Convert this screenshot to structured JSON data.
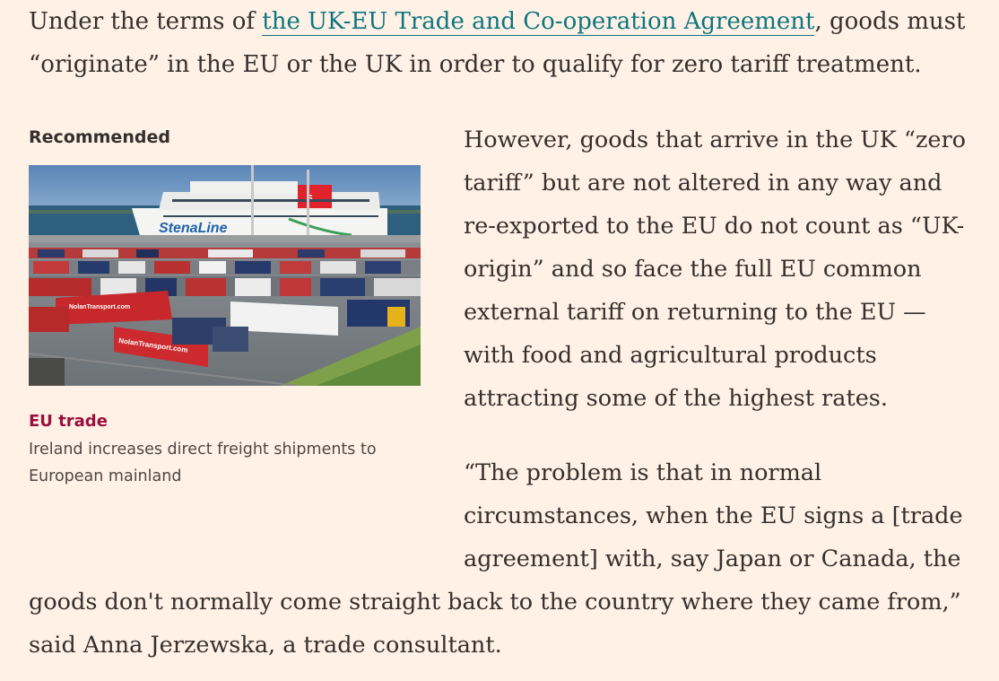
{
  "article": {
    "intro_before_link": "Under the terms of ",
    "intro_link": "the UK-EU Trade and Co-operation Agreement",
    "intro_after_link": ", goods must “originate” in the EU or the UK in order to qualify for zero tariff treatment.",
    "para2": "However, goods that arrive in the UK “zero tariff” but are not altered in any way and re-exported to the EU do not count as “UK-origin” and so face the full EU common external tariff on returning to the EU — with food and agricultural products attracting some of the highest rates.",
    "para3_wrapped": "“The problem is that in normal circumstances, when the EU signs a [trade agreement] with, say Japan or Canada, the",
    "para3_full": "goods don't normally come straight back to the country where they came from,” said Anna Jerzewska, a trade consultant."
  },
  "recommended": {
    "label": "Recommended",
    "image_ship_name": "StenaLine",
    "image_truck_text_1": "NolanTransport.com",
    "image_truck_text_2": "NolanTransport.com",
    "tag": "EU trade",
    "headline": "Ireland increases direct freight shipments to European mainland"
  },
  "colors": {
    "background": "#fff1e5",
    "link": "#0d7680",
    "tag": "#990f3d",
    "text": "#33302e"
  }
}
